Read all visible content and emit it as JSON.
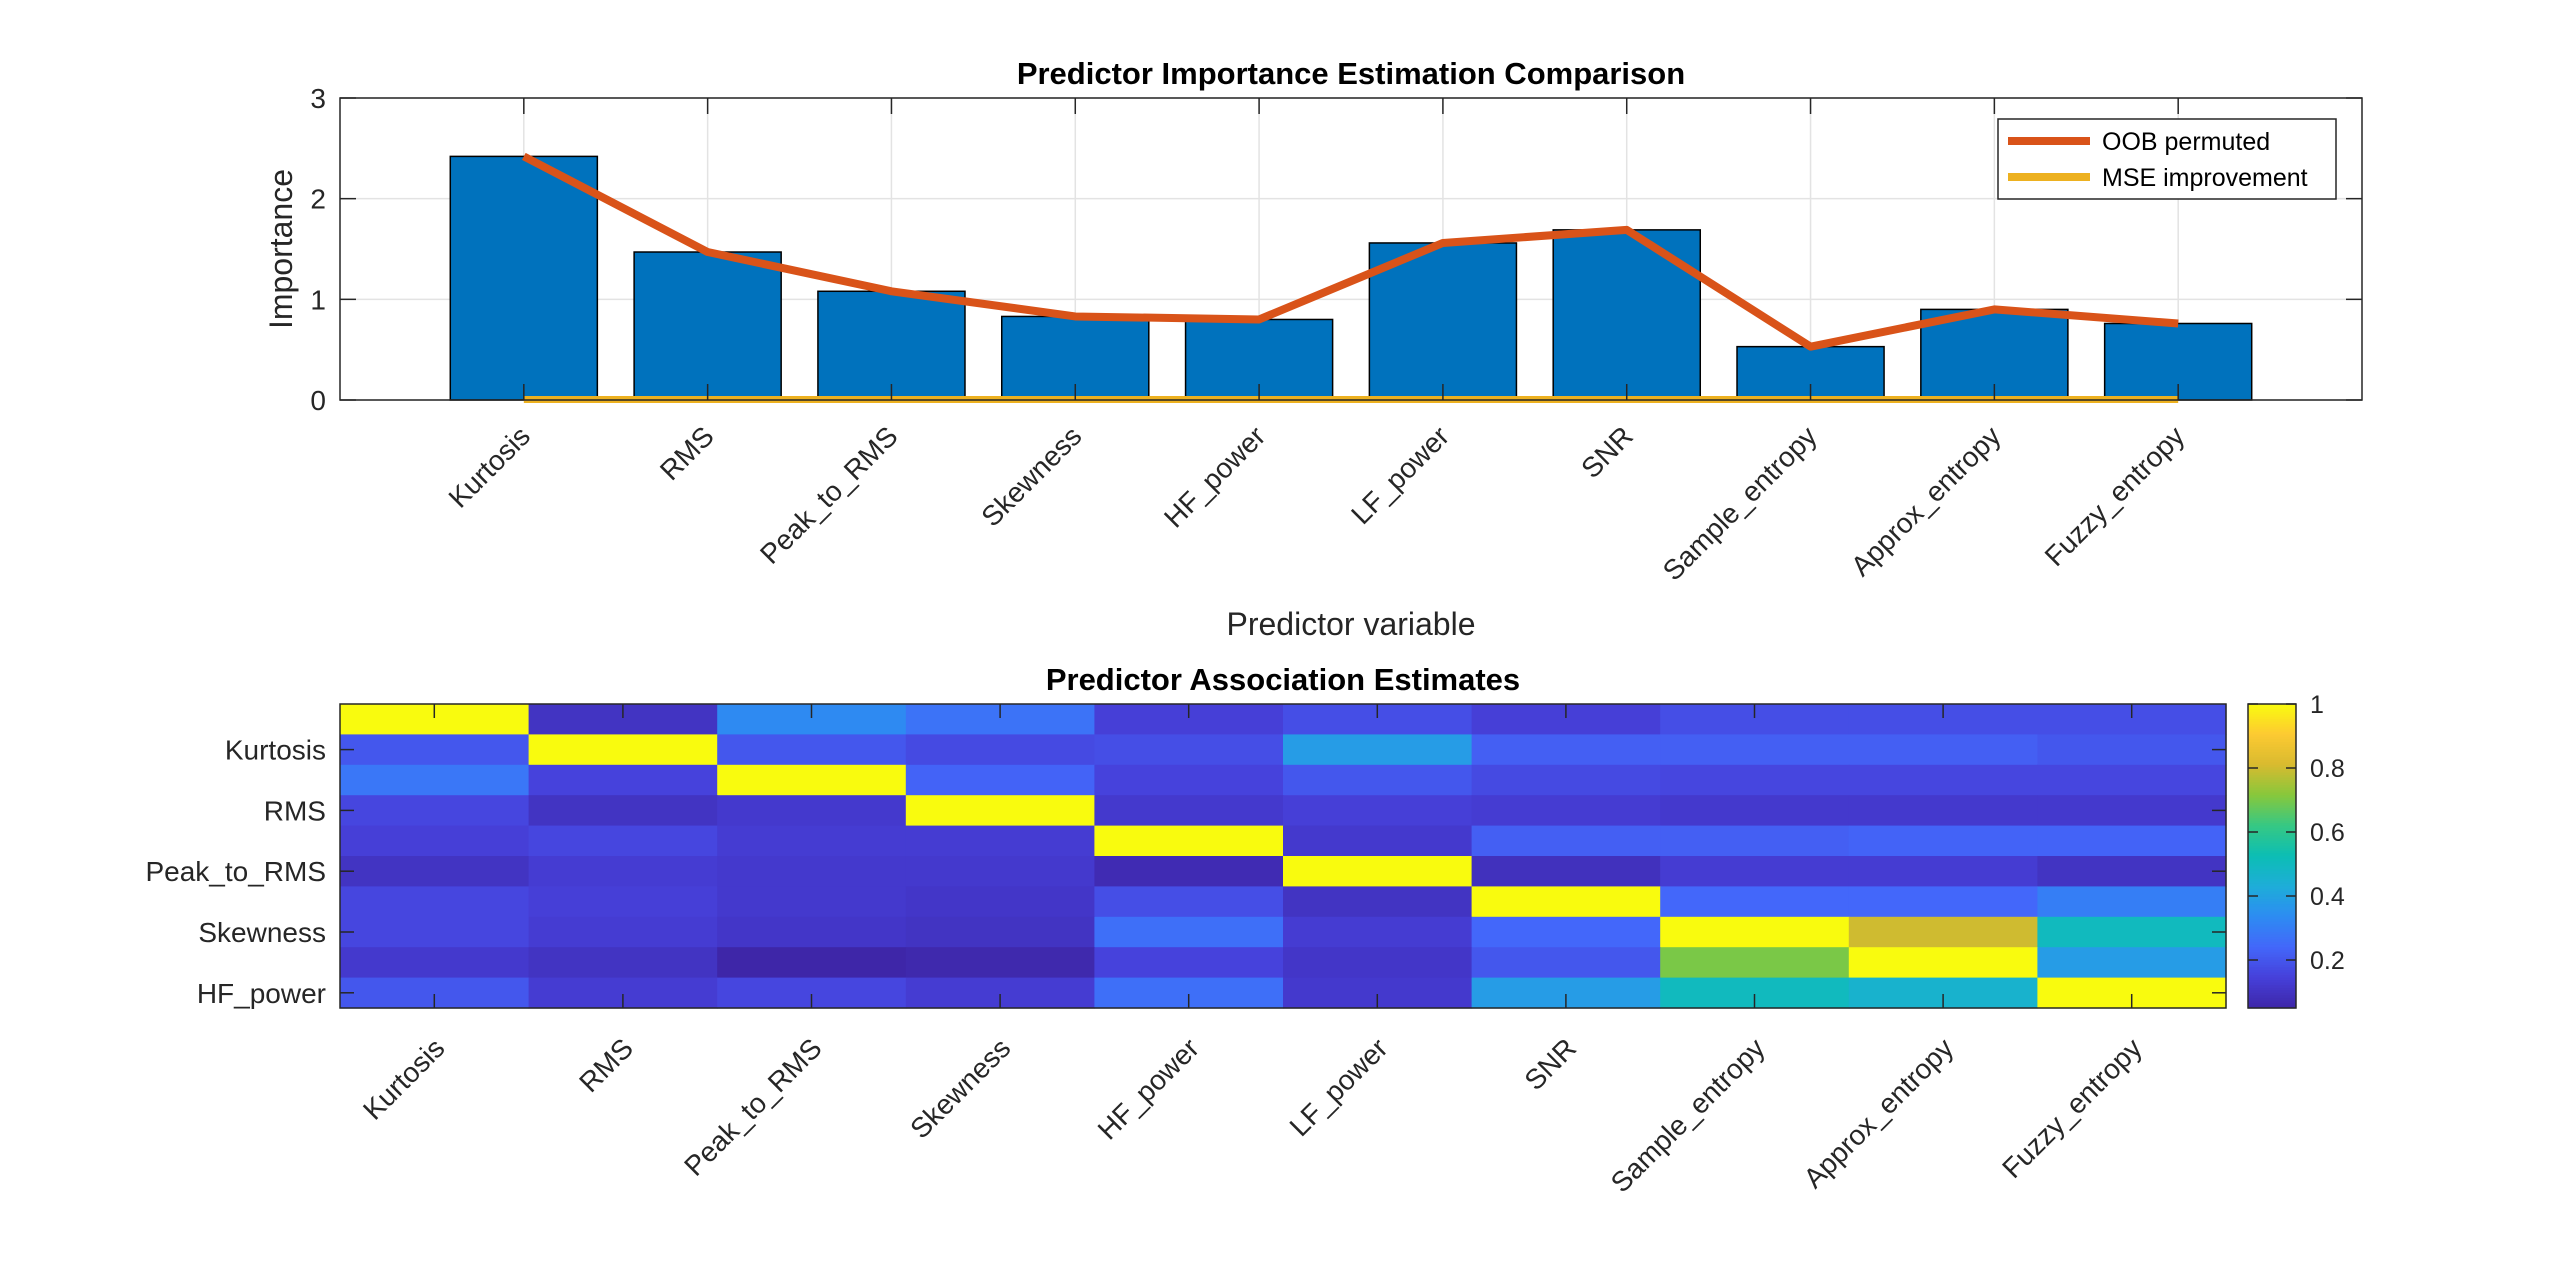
{
  "chart_data": [
    {
      "type": "bar",
      "title": "Predictor Importance Estimation Comparison",
      "xlabel": "Predictor variable",
      "ylabel": "Importance",
      "ylim": [
        0,
        3
      ],
      "yticks": [
        "0",
        "1",
        "2",
        "3"
      ],
      "grid": true,
      "legend_position": "top-right",
      "categories": [
        "Kurtosis",
        "RMS",
        "Peak_to_RMS",
        "Skewness",
        "HF_power",
        "LF_power",
        "SNR",
        "Sample_entropy",
        "Approx_entropy",
        "Fuzzy_entropy"
      ],
      "bar_values": [
        2.42,
        1.47,
        1.08,
        0.83,
        0.8,
        1.56,
        1.69,
        0.53,
        0.9,
        0.76
      ],
      "bar_color": "#0072BD",
      "series": [
        {
          "name": "OOB permuted",
          "type": "line",
          "color": "#D95319",
          "values": [
            2.42,
            1.47,
            1.08,
            0.83,
            0.8,
            1.56,
            1.69,
            0.53,
            0.9,
            0.76
          ]
        },
        {
          "name": "MSE improvement",
          "type": "line",
          "color": "#EDB120",
          "values": [
            0.005,
            0.005,
            0.005,
            0.005,
            0.005,
            0.005,
            0.005,
            0.005,
            0.005,
            0.005
          ]
        }
      ]
    },
    {
      "type": "heatmap",
      "title": "Predictor Association Estimates",
      "x_categories": [
        "Kurtosis",
        "RMS",
        "Peak_to_RMS",
        "Skewness",
        "HF_power",
        "LF_power",
        "SNR",
        "Sample_entropy",
        "Approx_entropy",
        "Fuzzy_entropy"
      ],
      "y_tick_labels": [
        "Kurtosis",
        "RMS",
        "Peak_to_RMS",
        "Skewness",
        "HF_power"
      ],
      "colormap": "parula",
      "clim": [
        0.05,
        1
      ],
      "colorbar_ticks": [
        "0.2",
        "0.4",
        "0.6",
        "0.8",
        "1"
      ],
      "colorbar_tick_values": [
        0.2,
        0.4,
        0.6,
        0.8,
        1
      ],
      "values": [
        [
          1.0,
          0.1,
          0.33,
          0.27,
          0.14,
          0.18,
          0.14,
          0.18,
          0.18,
          0.18
        ],
        [
          0.2,
          1.0,
          0.2,
          0.17,
          0.18,
          0.38,
          0.22,
          0.22,
          0.22,
          0.2
        ],
        [
          0.28,
          0.15,
          1.0,
          0.23,
          0.15,
          0.2,
          0.17,
          0.16,
          0.16,
          0.16
        ],
        [
          0.16,
          0.1,
          0.12,
          1.0,
          0.12,
          0.14,
          0.13,
          0.12,
          0.12,
          0.12
        ],
        [
          0.14,
          0.16,
          0.13,
          0.13,
          1.0,
          0.12,
          0.22,
          0.22,
          0.23,
          0.23
        ],
        [
          0.1,
          0.13,
          0.12,
          0.12,
          0.07,
          1.0,
          0.09,
          0.13,
          0.13,
          0.1
        ],
        [
          0.16,
          0.14,
          0.12,
          0.11,
          0.18,
          0.1,
          1.0,
          0.24,
          0.24,
          0.3
        ],
        [
          0.16,
          0.13,
          0.11,
          0.1,
          0.26,
          0.13,
          0.24,
          1.0,
          0.8,
          0.5
        ],
        [
          0.12,
          0.1,
          0.05,
          0.06,
          0.15,
          0.11,
          0.2,
          0.7,
          1.0,
          0.38
        ],
        [
          0.2,
          0.13,
          0.16,
          0.13,
          0.26,
          0.12,
          0.38,
          0.5,
          0.46,
          1.0
        ]
      ]
    }
  ]
}
